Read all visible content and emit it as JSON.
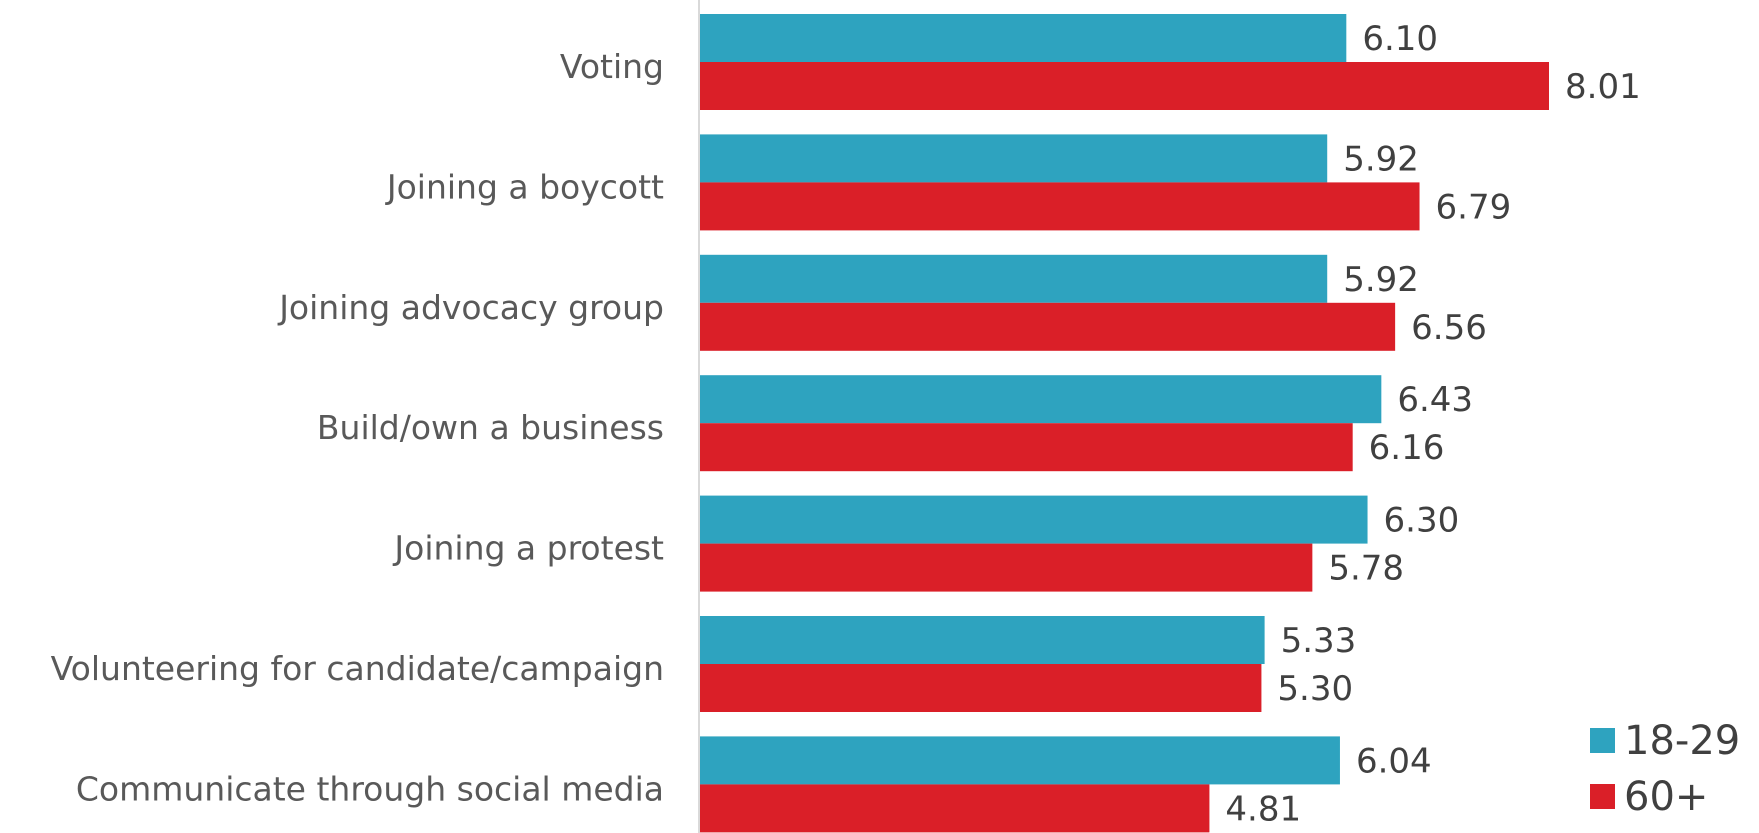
{
  "chart_data": {
    "type": "bar",
    "orientation": "horizontal",
    "categories": [
      "Voting",
      "Joining a boycott",
      "Joining advocacy group",
      "Build/own a business",
      "Joining a protest",
      "Volunteering for candidate/campaign",
      "Communicate through social media"
    ],
    "series": [
      {
        "name": "18-29",
        "color": "#2ea3bf",
        "values": [
          6.1,
          5.92,
          5.92,
          6.43,
          6.3,
          5.33,
          6.04
        ],
        "labels": [
          "6.10",
          "5.92",
          "5.92",
          "6.43",
          "6.30",
          "5.33",
          "6.04"
        ]
      },
      {
        "name": "60+",
        "color": "#da1f28",
        "values": [
          8.01,
          6.79,
          6.56,
          6.16,
          5.78,
          5.3,
          4.81
        ],
        "labels": [
          "8.01",
          "6.79",
          "6.56",
          "6.16",
          "5.78",
          "5.30",
          "4.81"
        ]
      }
    ],
    "xlim": [
      0,
      8.01
    ],
    "grid": false,
    "legend_position": "bottom-right",
    "axis_color": "#d9d9d9"
  }
}
